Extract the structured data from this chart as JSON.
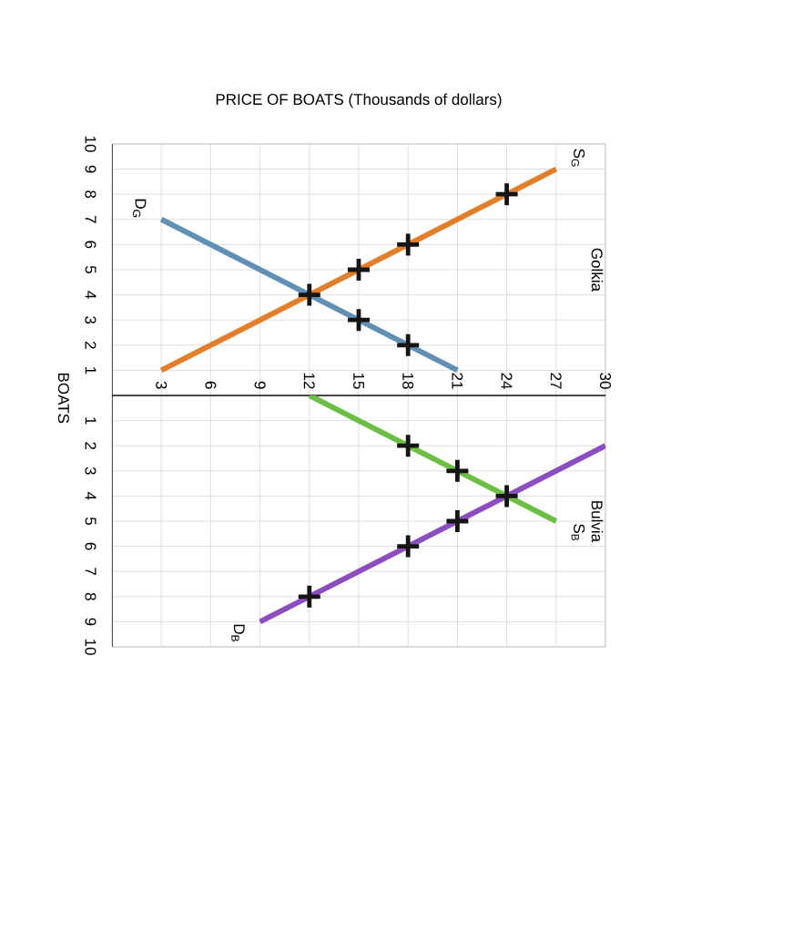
{
  "chart_data": [
    {
      "type": "line",
      "title": "Golkia",
      "xlabel": "PRICE OF BOATS (Thousands of dollars)",
      "ylabel": "BOATS",
      "xlim": [
        0,
        30
      ],
      "xticks": [
        3,
        6,
        9,
        12,
        15,
        18,
        21,
        24,
        27,
        30
      ],
      "ylim": [
        0,
        10
      ],
      "yticks": [
        1,
        2,
        3,
        4,
        5,
        6,
        7,
        8,
        9,
        10
      ],
      "grid": true,
      "series": [
        {
          "name": "S$_{G}$",
          "color": "#e17f2b",
          "x": [
            3,
            27
          ],
          "values": [
            1,
            9
          ]
        },
        {
          "name": "D$_{G}$",
          "color": "#6190b5",
          "x": [
            3,
            21
          ],
          "values": [
            7,
            1
          ]
        },
        {
          "type": "scatter",
          "marker": "cross",
          "color": "#151515",
          "x": [
            12,
            15,
            18,
            24,
            15,
            18
          ],
          "values": [
            4,
            5,
            6,
            8,
            3,
            2
          ]
        }
      ]
    },
    {
      "type": "line",
      "title": "Bulvia",
      "xlim": [
        0,
        30
      ],
      "xticks": [
        3,
        6,
        9,
        12,
        15,
        18,
        21,
        24,
        27,
        30
      ],
      "ylim": [
        10,
        0
      ],
      "yticks": [
        1,
        2,
        3,
        4,
        5,
        6,
        7,
        8,
        9,
        10
      ],
      "tick_labels": "y",
      "grid": true,
      "series": [
        {
          "name": "S$_{B}$",
          "color": "#6dbe45",
          "x": [
            12,
            27
          ],
          "values": [
            0,
            5
          ]
        },
        {
          "name": "D$_{B}$",
          "color": "#8b4dbf",
          "x": [
            30,
            9
          ],
          "values": [
            2,
            9
          ]
        },
        {
          "type": "scatter",
          "marker": "cross",
          "color": "#151515",
          "x": [
            18,
            21,
            24,
            21,
            18,
            12
          ],
          "values": [
            2,
            3,
            4,
            5,
            6,
            8
          ]
        }
      ]
    }
  ]
}
